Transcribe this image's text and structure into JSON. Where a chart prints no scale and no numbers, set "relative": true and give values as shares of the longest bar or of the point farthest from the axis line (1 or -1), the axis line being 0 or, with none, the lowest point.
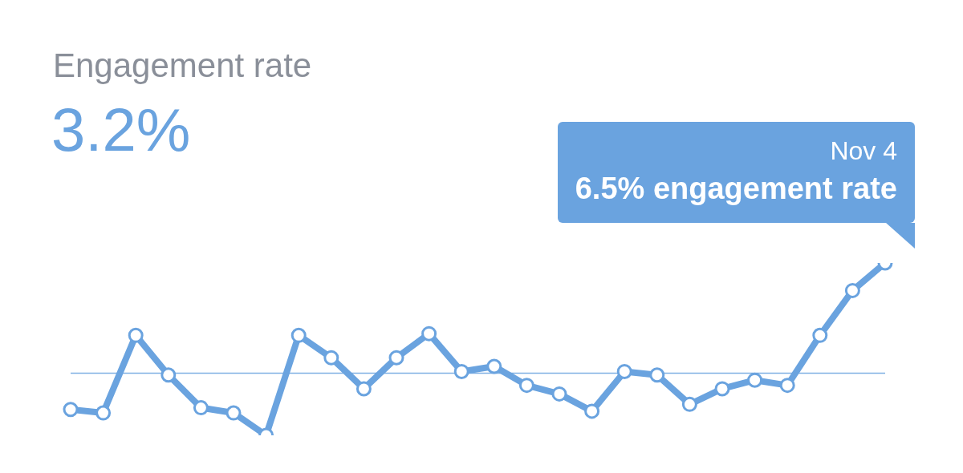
{
  "chart_data": {
    "type": "line",
    "title": "Engagement rate",
    "subtitle": "3.2%",
    "relative": true,
    "categories": [
      null,
      null,
      null,
      null,
      null,
      null,
      null,
      null,
      null,
      null,
      null,
      null,
      null,
      null,
      null,
      null,
      null,
      null,
      null,
      null,
      null,
      null,
      null,
      null,
      null,
      null
    ],
    "series": [
      {
        "color": "#6aa3df",
        "values": [
          0.15,
          0.13,
          0.58,
          0.35,
          0.16,
          0.13,
          0,
          0.58,
          0.45,
          0.27,
          0.45,
          0.59,
          0.37,
          0.4,
          0.29,
          0.24,
          0.14,
          0.37,
          0.35,
          0.18,
          0.27,
          0.32,
          0.29,
          0.58,
          0.84,
          1
        ]
      }
    ],
    "ref_lines": [
      {
        "axis": "y",
        "value": 0.36,
        "color": "#7fb0e3"
      }
    ],
    "annotations": [
      "Nov 4",
      "6.5% engagement rate"
    ],
    "marker": "circle",
    "line_style": "solid",
    "legend": false
  }
}
